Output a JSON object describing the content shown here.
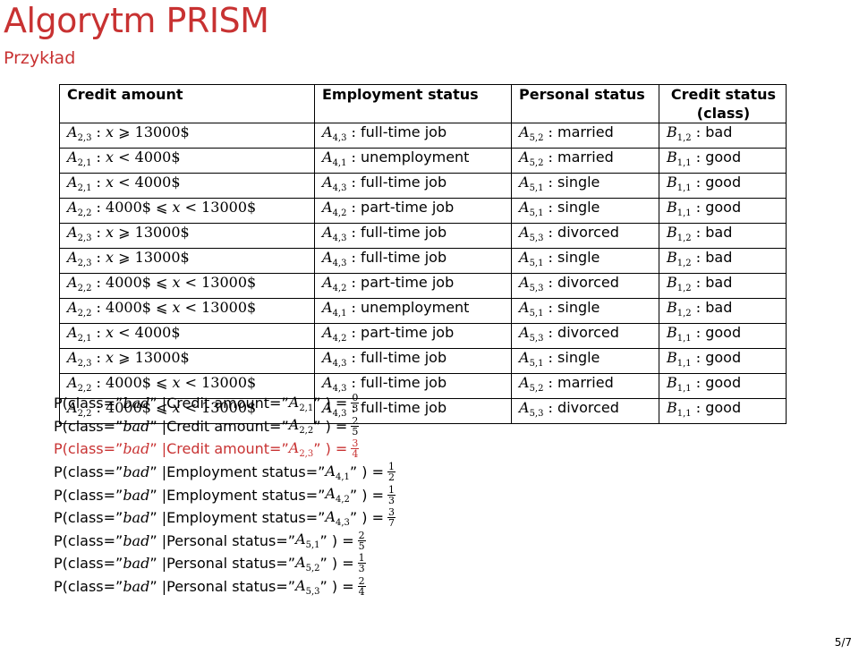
{
  "title": "Algorytm PRISM",
  "subtitle": "Przykład",
  "table": {
    "headers": [
      "Credit amount",
      "Employment status",
      "Personal status",
      "Credit status (class)"
    ],
    "rows": [
      {
        "credit": "A_{2,3} : x ⩾ 13000$",
        "employment": "A_{4,3} : full-time job",
        "personal": "A_{5,2} : married",
        "status": "B_{1,2} : bad"
      },
      {
        "credit": "A_{2,1} : x < 4000$",
        "employment": "A_{4,1} : unemployment",
        "personal": "A_{5,2} : married",
        "status": "B_{1,1} : good"
      },
      {
        "credit": "A_{2,1} : x < 4000$",
        "employment": "A_{4,3} : full-time job",
        "personal": "A_{5,1} : single",
        "status": "B_{1,1} : good"
      },
      {
        "credit": "A_{2,2} : 4000$ ⩽ x < 13000$",
        "employment": "A_{4,2} : part-time job",
        "personal": "A_{5,1} : single",
        "status": "B_{1,1} : good"
      },
      {
        "credit": "A_{2,3} : x ⩾ 13000$",
        "employment": "A_{4,3} : full-time job",
        "personal": "A_{5,3} : divorced",
        "status": "B_{1,2} : bad"
      },
      {
        "credit": "A_{2,3} : x ⩾ 13000$",
        "employment": "A_{4,3} : full-time job",
        "personal": "A_{5,1} : single",
        "status": "B_{1,2} : bad"
      },
      {
        "credit": "A_{2,2} : 4000$ ⩽ x < 13000$",
        "employment": "A_{4,2} : part-time job",
        "personal": "A_{5,3} : divorced",
        "status": "B_{1,2} : bad"
      },
      {
        "credit": "A_{2,2} : 4000$ ⩽ x < 13000$",
        "employment": "A_{4,1} : unemployment",
        "personal": "A_{5,1} : single",
        "status": "B_{1,2} : bad"
      },
      {
        "credit": "A_{2,1} : x < 4000$",
        "employment": "A_{4,2} : part-time job",
        "personal": "A_{5,3} : divorced",
        "status": "B_{1,1} : good"
      },
      {
        "credit": "A_{2,3} : x ⩾ 13000$",
        "employment": "A_{4,3} : full-time job",
        "personal": "A_{5,1} : single",
        "status": "B_{1,1} : good"
      },
      {
        "credit": "A_{2,2} : 4000$ ⩽ x < 13000$",
        "employment": "A_{4,3} : full-time job",
        "personal": "A_{5,2} : married",
        "status": "B_{1,1} : good"
      },
      {
        "credit": "A_{2,2} : 4000$ ⩽ x < 13000$",
        "employment": "A_{4,3} : full-time job",
        "personal": "A_{5,3} : divorced",
        "status": "B_{1,1} : good"
      }
    ]
  },
  "probabilities": [
    {
      "attribute": "Credit amount",
      "value": "A_{2,1}",
      "numerator": "0",
      "denominator": "3",
      "highlight": false
    },
    {
      "attribute": "Credit amount",
      "value": "A_{2,2}",
      "numerator": "2",
      "denominator": "5",
      "highlight": false
    },
    {
      "attribute": "Credit amount",
      "value": "A_{2,3}",
      "numerator": "3",
      "denominator": "4",
      "highlight": true
    },
    {
      "attribute": "Employment status",
      "value": "A_{4,1}",
      "numerator": "1",
      "denominator": "2",
      "highlight": false
    },
    {
      "attribute": "Employment status",
      "value": "A_{4,2}",
      "numerator": "1",
      "denominator": "3",
      "highlight": false
    },
    {
      "attribute": "Employment status",
      "value": "A_{4,3}",
      "numerator": "3",
      "denominator": "7",
      "highlight": false
    },
    {
      "attribute": "Personal status",
      "value": "A_{5,1}",
      "numerator": "2",
      "denominator": "5",
      "highlight": false
    },
    {
      "attribute": "Personal status",
      "value": "A_{5,2}",
      "numerator": "1",
      "denominator": "3",
      "highlight": false
    },
    {
      "attribute": "Personal status",
      "value": "A_{5,3}",
      "numerator": "2",
      "denominator": "4",
      "highlight": false
    }
  ],
  "prob_class": "bad",
  "page_number": "5/7",
  "colors": {
    "accent": "#c83232"
  }
}
